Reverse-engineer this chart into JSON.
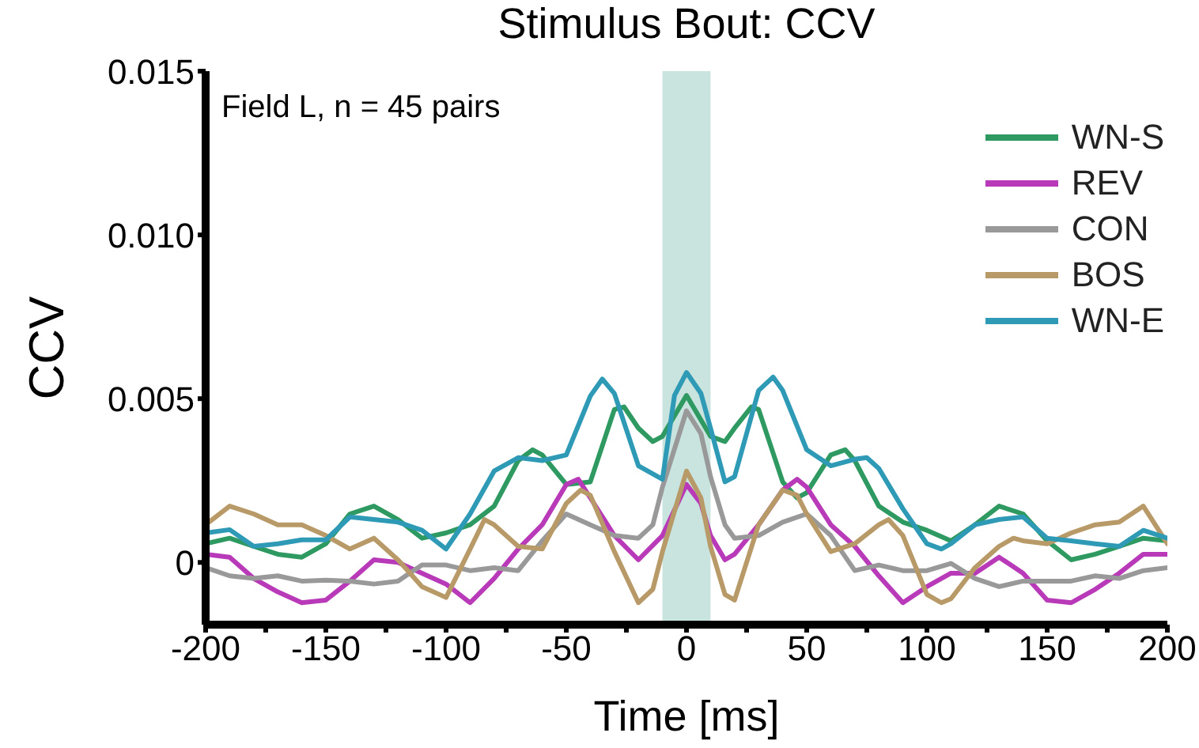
{
  "chart_data": {
    "type": "line",
    "title": "Stimulus Bout: CCV",
    "xlabel": "Time [ms]",
    "ylabel": "CCV",
    "annotations": [
      "Field L, n = 45 pairs"
    ],
    "xlim": [
      -200,
      200
    ],
    "ylim": [
      -0.0019,
      0.015
    ],
    "xticks": [
      -200,
      {
        "value": -175,
        "label": null
      },
      -150,
      {
        "value": -125,
        "label": null
      },
      -100,
      {
        "value": -75,
        "label": null
      },
      -50,
      {
        "value": -25,
        "label": null
      },
      0,
      {
        "value": 25,
        "label": null
      },
      50,
      {
        "value": 75,
        "label": null
      },
      100,
      {
        "value": 125,
        "label": null
      },
      150,
      {
        "value": 175,
        "label": null
      },
      200
    ],
    "yticks": [
      0,
      {
        "value": 0.005,
        "label": "0.005"
      },
      {
        "value": 0.01,
        "label": "0.010"
      },
      0.015
    ],
    "grid": false,
    "legend": "top right",
    "line_style": "solid",
    "marker": "none",
    "bands": [
      {
        "axis": "x",
        "from": -10,
        "to": 10,
        "label": null,
        "color": "#c9e3df"
      }
    ],
    "series": [
      {
        "name": "WN-S",
        "color": "#2e9960",
        "x": [
          -200,
          -190,
          -180,
          -170,
          -160,
          -150,
          -140,
          -130,
          -120,
          -110,
          -100,
          -90,
          -80,
          -70,
          -64,
          -60,
          -50,
          -40,
          -30,
          -26,
          -20,
          -14,
          -10,
          0,
          10,
          16,
          20,
          27,
          30,
          40,
          46,
          50,
          60,
          66,
          70,
          80,
          90,
          100,
          110,
          120,
          130,
          140,
          150,
          160,
          170,
          180,
          190,
          200
        ],
        "values": [
          0.00057,
          0.00074,
          0.00049,
          0.00025,
          0.00016,
          0.00057,
          0.00148,
          0.00172,
          0.00131,
          0.00074,
          0.0009,
          0.00115,
          0.00172,
          0.00311,
          0.00344,
          0.00328,
          0.00238,
          0.00246,
          0.00467,
          0.00475,
          0.0041,
          0.00369,
          0.00385,
          0.0051,
          0.00385,
          0.00369,
          0.0041,
          0.00475,
          0.00467,
          0.00246,
          0.00197,
          0.00213,
          0.00328,
          0.00344,
          0.00311,
          0.00172,
          0.00123,
          0.00098,
          0.00066,
          0.00115,
          0.00172,
          0.00148,
          0.00066,
          8e-05,
          0.00025,
          0.00049,
          0.00074,
          0.00066
        ]
      },
      {
        "name": "REV",
        "color": "#b83ab8",
        "x": [
          -200,
          -190,
          -180,
          -170,
          -160,
          -150,
          -140,
          -130,
          -120,
          -110,
          -100,
          -90,
          -80,
          -70,
          -60,
          -50,
          -45,
          -40,
          -30,
          -20,
          -10,
          0,
          6,
          10,
          16,
          20,
          30,
          40,
          46,
          50,
          60,
          70,
          80,
          90,
          100,
          110,
          120,
          130,
          140,
          150,
          160,
          170,
          180,
          190,
          200
        ],
        "values": [
          0.00025,
          0.00016,
          -0.00049,
          -0.0009,
          -0.00123,
          -0.00115,
          -0.00057,
          8e-05,
          0,
          -0.00033,
          -0.00066,
          -0.00123,
          -0.00049,
          0.00041,
          0.00115,
          0.00238,
          0.00254,
          0.00197,
          0.00082,
          8e-05,
          0.00082,
          0.00238,
          0.0018,
          0.00082,
          8e-05,
          0.00025,
          0.00115,
          0.00221,
          0.00254,
          0.0023,
          0.00115,
          0.00049,
          -0.00041,
          -0.00123,
          -0.00074,
          -0.00033,
          -0.00033,
          0.00016,
          -0.00033,
          -0.00115,
          -0.00123,
          -0.00082,
          -0.00033,
          0.00025,
          0.00025
        ]
      },
      {
        "name": "CON",
        "color": "#999999",
        "x": [
          -200,
          -190,
          -180,
          -170,
          -160,
          -150,
          -140,
          -130,
          -120,
          -110,
          -100,
          -90,
          -80,
          -70,
          -60,
          -50,
          -40,
          -30,
          -20,
          -14,
          -10,
          0,
          6,
          10,
          16,
          20,
          30,
          40,
          50,
          60,
          70,
          80,
          90,
          100,
          110,
          120,
          130,
          140,
          150,
          160,
          170,
          180,
          190,
          200
        ],
        "values": [
          -0.00016,
          -0.00041,
          -0.00049,
          -0.00041,
          -0.00057,
          -0.00054,
          -0.00057,
          -0.00066,
          -0.00057,
          -8e-05,
          -8e-05,
          -0.00025,
          -0.00016,
          -0.00025,
          0.00066,
          0.00148,
          0.00115,
          0.00082,
          0.00074,
          0.00115,
          0.0023,
          0.00463,
          0.00393,
          0.00262,
          0.00115,
          0.00074,
          0.00082,
          0.00123,
          0.00148,
          0.00082,
          -0.00025,
          -8e-05,
          -0.00025,
          -0.00025,
          -3e-05,
          -0.00049,
          -0.00074,
          -0.00057,
          -0.00057,
          -0.00057,
          -0.00041,
          -0.00049,
          -0.00025,
          -0.00016
        ]
      },
      {
        "name": "BOS",
        "color": "#b89a68",
        "x": [
          -200,
          -190,
          -180,
          -170,
          -160,
          -150,
          -140,
          -130,
          -120,
          -110,
          -100,
          -90,
          -84,
          -80,
          -70,
          -60,
          -50,
          -44,
          -40,
          -30,
          -20,
          -14,
          -10,
          0,
          6,
          10,
          16,
          20,
          30,
          40,
          46,
          50,
          60,
          70,
          80,
          84,
          90,
          100,
          106,
          110,
          120,
          130,
          136,
          140,
          150,
          160,
          170,
          180,
          190,
          200
        ],
        "values": [
          0.00115,
          0.00172,
          0.00148,
          0.00115,
          0.00115,
          0.00082,
          0.00041,
          0.00074,
          8e-05,
          -0.00074,
          -0.00107,
          0.00041,
          0.00131,
          0.00115,
          0.00049,
          0.00041,
          0.0018,
          0.00221,
          0.00205,
          0.00033,
          -0.00123,
          -0.00082,
          0.00033,
          0.00279,
          0.00197,
          0.00049,
          -0.00098,
          -0.00115,
          0.00115,
          0.00221,
          0.00205,
          0.00148,
          0.00033,
          0.00057,
          0.00115,
          0.00131,
          0.00082,
          -0.00098,
          -0.00123,
          -0.00111,
          -0.00016,
          0.00049,
          0.00074,
          0.00066,
          0.00057,
          0.0009,
          0.00115,
          0.00123,
          0.00172,
          0.00057
        ]
      },
      {
        "name": "WN-E",
        "color": "#2e9ab5",
        "x": [
          -200,
          -190,
          -180,
          -170,
          -160,
          -150,
          -140,
          -130,
          -120,
          -110,
          -100,
          -90,
          -80,
          -70,
          -60,
          -50,
          -40,
          -35,
          -30,
          -20,
          -10,
          -5,
          0,
          6,
          10,
          16,
          20,
          30,
          36,
          40,
          50,
          60,
          70,
          75,
          80,
          90,
          100,
          106,
          110,
          120,
          130,
          140,
          150,
          160,
          170,
          180,
          190,
          200
        ],
        "values": [
          0.0009,
          0.001,
          0.00049,
          0.00057,
          0.00069,
          0.00069,
          0.00139,
          0.00131,
          0.00123,
          0.00098,
          0.00041,
          0.00148,
          0.00279,
          0.0032,
          0.00311,
          0.00328,
          0.00508,
          0.0056,
          0.00516,
          0.00295,
          0.00254,
          0.0051,
          0.0058,
          0.00516,
          0.0041,
          0.00246,
          0.00262,
          0.00525,
          0.00566,
          0.00525,
          0.00344,
          0.00295,
          0.00315,
          0.0032,
          0.00287,
          0.00164,
          0.00057,
          0.00041,
          0.00057,
          0.00115,
          0.00131,
          0.00139,
          0.00074,
          0.00066,
          0.00057,
          0.00049,
          0.00098,
          0.00074
        ]
      }
    ]
  }
}
